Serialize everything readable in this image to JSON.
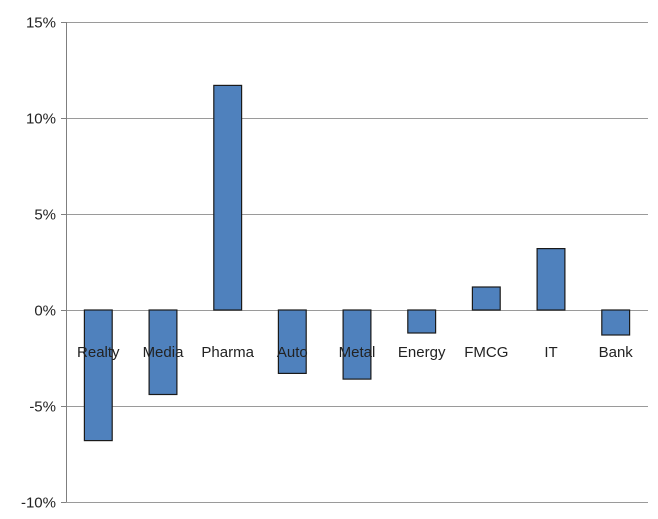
{
  "chart_data": {
    "type": "bar",
    "title": "",
    "xlabel": "",
    "ylabel": "",
    "categories": [
      "Realty",
      "Media",
      "Pharma",
      "Auto",
      "Metal",
      "Energy",
      "FMCG",
      "IT",
      "Bank"
    ],
    "values": [
      -6.8,
      -4.4,
      11.7,
      -3.3,
      -3.6,
      -1.2,
      1.2,
      3.2,
      -1.3
    ],
    "unit": "%",
    "ylim": [
      -10,
      15
    ],
    "yticks": [
      15,
      10,
      5,
      0,
      -5,
      -10
    ],
    "ytick_labels": [
      "15%",
      "10%",
      "5%",
      "0%",
      "-5%",
      "-10%"
    ],
    "grid": true,
    "legend": "none",
    "colors": {
      "bar_fill": "#4f81bd",
      "bar_stroke": "#1a1a1a",
      "grid": "#9a9a9a",
      "axis": "#7f7f7f"
    }
  }
}
